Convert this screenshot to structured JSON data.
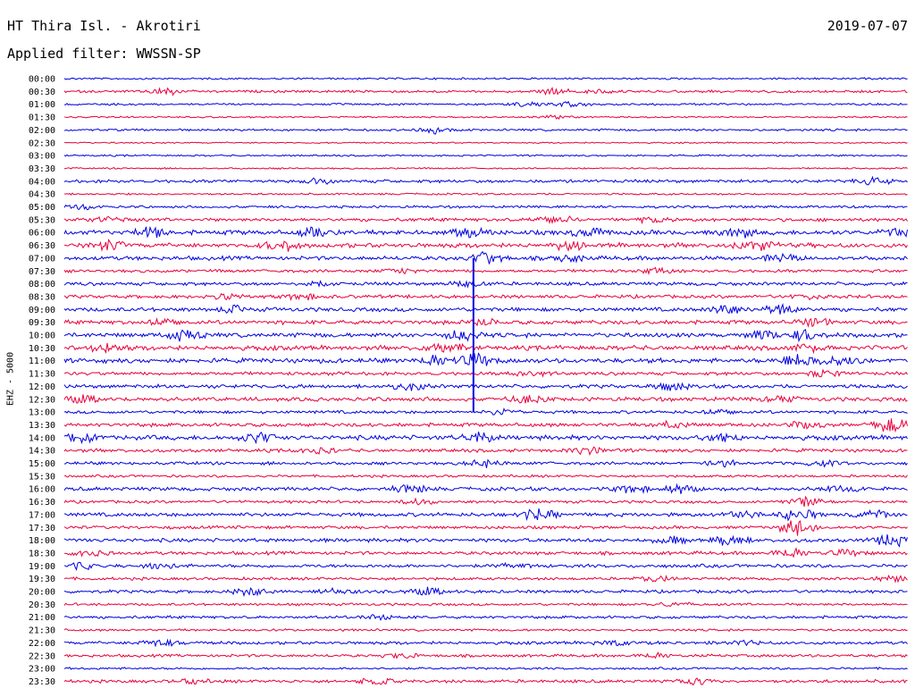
{
  "header": {
    "station": "HT Thira Isl. - Akrotiri",
    "date": "2019-07-07",
    "filter": "Applied filter: WWSSN-SP"
  },
  "channel_label": "EHZ - 5000",
  "colors": {
    "even_trace": "#0000e0",
    "odd_trace": "#e8003c",
    "background": "#ffffff"
  },
  "chart_data": {
    "type": "line",
    "title": "HT Thira Isl. - Akrotiri",
    "subtitle": "Applied filter: WWSSN-SP",
    "ylabel": "EHZ - 5000",
    "date": "2019-07-07",
    "y_tick_labels": [
      "00:00",
      "00:30",
      "01:00",
      "01:30",
      "02:00",
      "02:30",
      "03:00",
      "03:30",
      "04:00",
      "04:30",
      "05:00",
      "05:30",
      "06:00",
      "06:30",
      "07:00",
      "07:30",
      "08:00",
      "08:30",
      "09:00",
      "09:30",
      "10:00",
      "10:30",
      "11:00",
      "11:30",
      "12:00",
      "12:30",
      "13:00",
      "13:30",
      "14:00",
      "14:30",
      "15:00",
      "15:30",
      "16:00",
      "16:30",
      "17:00",
      "17:30",
      "18:00",
      "18:30",
      "19:00",
      "19:30",
      "20:00",
      "20:30",
      "21:00",
      "21:30",
      "22:00",
      "22:30",
      "23:00",
      "23:30"
    ],
    "traces": [
      {
        "label": "00:00",
        "noise": 1.2,
        "bursts": []
      },
      {
        "label": "00:30",
        "noise": 1.6,
        "bursts": [
          [
            0.12,
            4
          ],
          [
            0.58,
            4
          ],
          [
            0.63,
            2
          ]
        ]
      },
      {
        "label": "01:00",
        "noise": 1.3,
        "bursts": [
          [
            0.55,
            3
          ],
          [
            0.6,
            3
          ]
        ]
      },
      {
        "label": "01:30",
        "noise": 1.0,
        "bursts": [
          [
            0.58,
            2
          ]
        ]
      },
      {
        "label": "02:00",
        "noise": 1.4,
        "bursts": [
          [
            0.44,
            4
          ]
        ]
      },
      {
        "label": "02:30",
        "noise": 0.9,
        "bursts": []
      },
      {
        "label": "03:00",
        "noise": 1.1,
        "bursts": []
      },
      {
        "label": "03:30",
        "noise": 1.0,
        "bursts": []
      },
      {
        "label": "04:00",
        "noise": 2.0,
        "bursts": [
          [
            0.3,
            3
          ],
          [
            0.96,
            4
          ]
        ]
      },
      {
        "label": "04:30",
        "noise": 1.2,
        "bursts": []
      },
      {
        "label": "05:00",
        "noise": 1.6,
        "bursts": [
          [
            0.02,
            3
          ]
        ]
      },
      {
        "label": "05:30",
        "noise": 2.2,
        "bursts": [
          [
            0.05,
            3
          ],
          [
            0.58,
            5
          ],
          [
            0.7,
            3
          ]
        ]
      },
      {
        "label": "06:00",
        "noise": 3.0,
        "bursts": [
          [
            0.1,
            6
          ],
          [
            0.3,
            6
          ],
          [
            0.48,
            6
          ],
          [
            0.62,
            6
          ],
          [
            0.8,
            6
          ],
          [
            0.99,
            6
          ]
        ]
      },
      {
        "label": "06:30",
        "noise": 3.0,
        "bursts": [
          [
            0.05,
            5
          ],
          [
            0.26,
            7
          ],
          [
            0.6,
            5
          ],
          [
            0.82,
            6
          ]
        ]
      },
      {
        "label": "07:00",
        "noise": 2.6,
        "bursts": [
          [
            0.5,
            8
          ],
          [
            0.6,
            5
          ],
          [
            0.85,
            5
          ]
        ]
      },
      {
        "label": "07:30",
        "noise": 2.0,
        "bursts": [
          [
            0.4,
            3
          ],
          [
            0.7,
            3
          ]
        ]
      },
      {
        "label": "08:00",
        "noise": 2.2,
        "bursts": [
          [
            0.3,
            4
          ],
          [
            0.48,
            4
          ]
        ]
      },
      {
        "label": "08:30",
        "noise": 2.2,
        "bursts": [
          [
            0.2,
            4
          ],
          [
            0.28,
            4
          ],
          [
            0.88,
            3
          ]
        ]
      },
      {
        "label": "09:00",
        "noise": 2.6,
        "bursts": [
          [
            0.2,
            4
          ],
          [
            0.79,
            7
          ],
          [
            0.85,
            6
          ]
        ]
      },
      {
        "label": "09:30",
        "noise": 2.6,
        "bursts": [
          [
            0.12,
            4
          ],
          [
            0.5,
            4
          ],
          [
            0.89,
            5
          ]
        ]
      },
      {
        "label": "10:00",
        "noise": 2.8,
        "bursts": [
          [
            0.14,
            6
          ],
          [
            0.47,
            6
          ],
          [
            0.83,
            6
          ],
          [
            0.88,
            6
          ]
        ]
      },
      {
        "label": "10:30",
        "noise": 3.0,
        "bursts": [
          [
            0.05,
            5
          ],
          [
            0.45,
            6
          ],
          [
            0.88,
            5
          ]
        ]
      },
      {
        "label": "11:00",
        "noise": 3.0,
        "bursts": [
          [
            0.44,
            6
          ],
          [
            0.49,
            9
          ],
          [
            0.87,
            8
          ],
          [
            0.92,
            6
          ]
        ]
      },
      {
        "label": "11:30",
        "noise": 2.2,
        "bursts": [
          [
            0.55,
            4
          ],
          [
            0.9,
            4
          ]
        ]
      },
      {
        "label": "12:00",
        "noise": 2.4,
        "bursts": [
          [
            0.41,
            5
          ],
          [
            0.72,
            5
          ]
        ]
      },
      {
        "label": "12:30",
        "noise": 2.6,
        "bursts": [
          [
            0.02,
            5
          ],
          [
            0.55,
            5
          ],
          [
            0.85,
            4
          ]
        ]
      },
      {
        "label": "13:00",
        "noise": 2.0,
        "bursts": [
          [
            0.52,
            4
          ],
          [
            0.78,
            3
          ]
        ]
      },
      {
        "label": "13:30",
        "noise": 2.4,
        "bursts": [
          [
            0.72,
            4
          ],
          [
            0.88,
            4
          ],
          [
            0.98,
            9
          ]
        ]
      },
      {
        "label": "14:00",
        "noise": 3.0,
        "bursts": [
          [
            0.02,
            8
          ],
          [
            0.23,
            7
          ],
          [
            0.49,
            7
          ],
          [
            0.78,
            5
          ]
        ]
      },
      {
        "label": "14:30",
        "noise": 2.2,
        "bursts": [
          [
            0.3,
            4
          ],
          [
            0.62,
            5
          ]
        ]
      },
      {
        "label": "15:00",
        "noise": 2.0,
        "bursts": [
          [
            0.5,
            5
          ],
          [
            0.78,
            4
          ],
          [
            0.9,
            3
          ]
        ]
      },
      {
        "label": "15:30",
        "noise": 1.6,
        "bursts": []
      },
      {
        "label": "16:00",
        "noise": 2.4,
        "bursts": [
          [
            0.41,
            5
          ],
          [
            0.67,
            5
          ],
          [
            0.73,
            5
          ],
          [
            0.92,
            4
          ]
        ]
      },
      {
        "label": "16:30",
        "noise": 1.8,
        "bursts": [
          [
            0.42,
            3
          ],
          [
            0.88,
            6
          ]
        ]
      },
      {
        "label": "17:00",
        "noise": 2.4,
        "bursts": [
          [
            0.56,
            7
          ],
          [
            0.8,
            6
          ],
          [
            0.87,
            8
          ],
          [
            0.96,
            5
          ]
        ]
      },
      {
        "label": "17:30",
        "noise": 2.0,
        "bursts": [
          [
            0.87,
            12
          ]
        ]
      },
      {
        "label": "18:00",
        "noise": 2.4,
        "bursts": [
          [
            0.72,
            4
          ],
          [
            0.79,
            6
          ],
          [
            0.98,
            7
          ]
        ]
      },
      {
        "label": "18:30",
        "noise": 2.2,
        "bursts": [
          [
            0.03,
            4
          ],
          [
            0.86,
            6
          ],
          [
            0.93,
            4
          ]
        ]
      },
      {
        "label": "19:00",
        "noise": 2.2,
        "bursts": [
          [
            0.02,
            4
          ],
          [
            0.11,
            4
          ],
          [
            0.53,
            3
          ]
        ]
      },
      {
        "label": "19:30",
        "noise": 1.8,
        "bursts": [
          [
            0.7,
            4
          ],
          [
            0.98,
            4
          ]
        ]
      },
      {
        "label": "20:00",
        "noise": 2.0,
        "bursts": [
          [
            0.22,
            5
          ],
          [
            0.32,
            4
          ],
          [
            0.43,
            5
          ]
        ]
      },
      {
        "label": "20:30",
        "noise": 1.6,
        "bursts": [
          [
            0.72,
            3
          ]
        ]
      },
      {
        "label": "21:00",
        "noise": 1.8,
        "bursts": [
          [
            0.37,
            3
          ]
        ]
      },
      {
        "label": "21:30",
        "noise": 1.4,
        "bursts": []
      },
      {
        "label": "22:00",
        "noise": 2.0,
        "bursts": [
          [
            0.11,
            4
          ],
          [
            0.65,
            3
          ],
          [
            0.8,
            3
          ]
        ]
      },
      {
        "label": "22:30",
        "noise": 1.8,
        "bursts": [
          [
            0.4,
            3
          ],
          [
            0.7,
            3
          ]
        ]
      },
      {
        "label": "23:00",
        "noise": 1.4,
        "bursts": []
      },
      {
        "label": "23:30",
        "noise": 2.0,
        "bursts": [
          [
            0.15,
            3
          ],
          [
            0.37,
            4
          ],
          [
            0.75,
            4
          ]
        ]
      }
    ],
    "major_event": {
      "trace_start": "07:00",
      "trace_end": "13:00",
      "x": 0.485
    }
  }
}
